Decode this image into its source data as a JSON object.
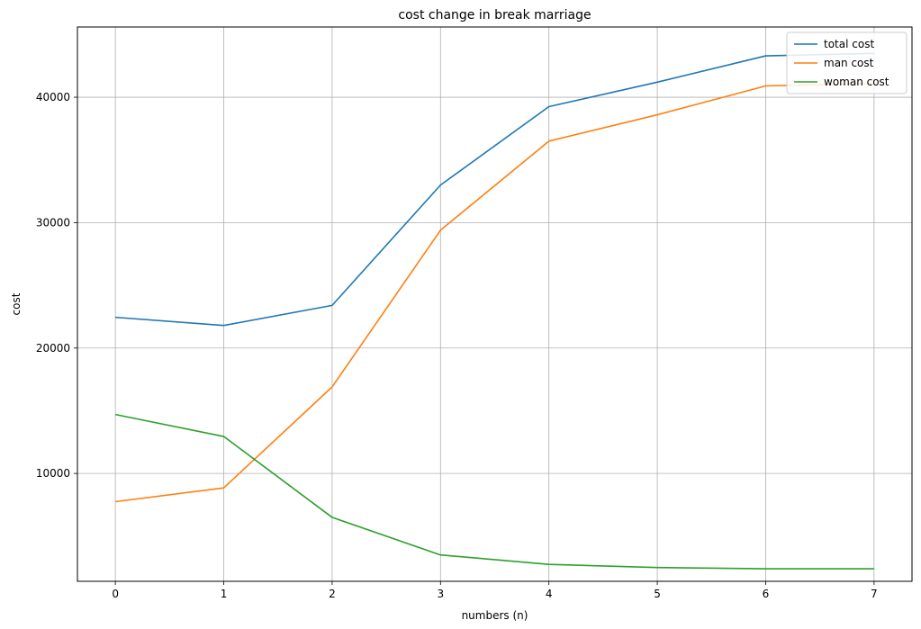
{
  "chart_data": {
    "type": "line",
    "title": "cost change in break marriage",
    "xlabel": "numbers (n)",
    "ylabel": "cost",
    "x": [
      0,
      1,
      2,
      3,
      4,
      5,
      6,
      7
    ],
    "xticks": [
      "0",
      "1",
      "2",
      "3",
      "4",
      "5",
      "6",
      "7"
    ],
    "yticks": [
      "10000",
      "20000",
      "30000",
      "40000"
    ],
    "xlim": [
      -0.35,
      7.35
    ],
    "ylim": [
      1400,
      45600
    ],
    "grid": true,
    "legend_position": "top-right",
    "series": [
      {
        "name": "total cost",
        "color": "#1f77b4",
        "values": [
          22450,
          21800,
          23400,
          33000,
          39250,
          41200,
          43300,
          43500
        ]
      },
      {
        "name": "man cost",
        "color": "#ff7f0e",
        "values": [
          7750,
          8850,
          16900,
          29400,
          36500,
          38600,
          40900,
          41100
        ]
      },
      {
        "name": "woman cost",
        "color": "#2ca02c",
        "values": [
          14700,
          12950,
          6500,
          3500,
          2750,
          2500,
          2400,
          2400
        ]
      }
    ]
  }
}
